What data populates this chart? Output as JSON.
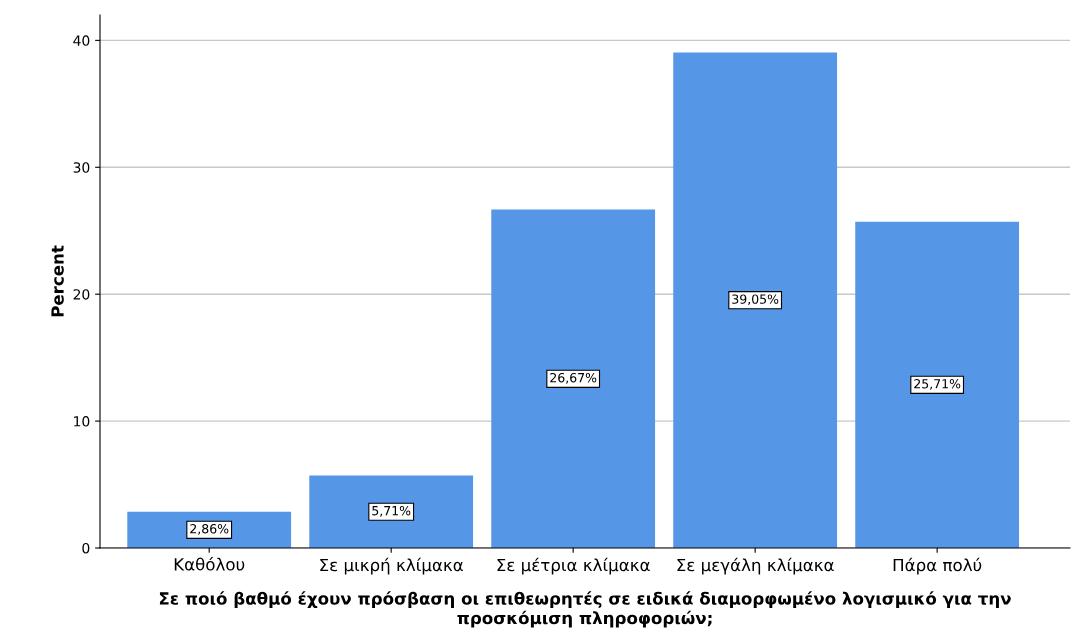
{
  "chart_data": {
    "type": "bar",
    "xlabel": "Σε ποιό βαθμό έχουν πρόσβαση οι επιθεωρητές σε ειδικά διαμορφωμένο λογισμικό για την προσκόμιση πληροφοριών;",
    "ylabel": "Percent",
    "categories": [
      "Καθόλου",
      "Σε μικρή κλίμακα",
      "Σε μέτρια κλίμακα",
      "Σε μεγάλη κλίμακα",
      "Πάρα πολύ"
    ],
    "values": [
      2.86,
      5.71,
      26.67,
      39.05,
      25.71
    ],
    "value_labels": [
      "2,86%",
      "5,71%",
      "26,67%",
      "39,05%",
      "25,71%"
    ],
    "color": "#5596e6",
    "ylim": [
      0,
      42
    ],
    "yticks": [
      0,
      10,
      20,
      30,
      40
    ],
    "grid": "y"
  }
}
